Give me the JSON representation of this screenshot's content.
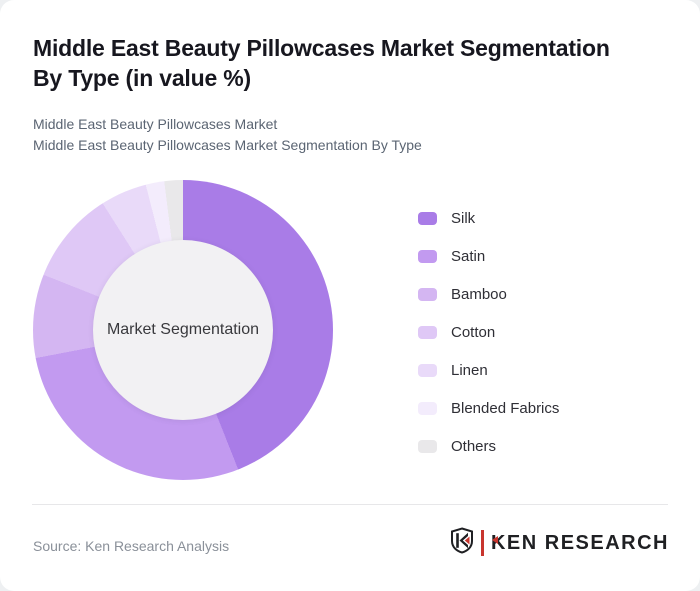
{
  "page": {
    "title_lines": [
      "Middle East Beauty Pillowcases Market Segmentation",
      "By Type (in value %)"
    ],
    "subtitle_lines": [
      "Middle East Beauty Pillowcases Market",
      "Middle East Beauty Pillowcases Market Segmentation By Type"
    ],
    "source_text": "Source: Ken Research Analysis",
    "brand": {
      "wordmark": "KEN RESEARCH",
      "accent_color": "#c8352e",
      "text_color": "#1f2023"
    }
  },
  "chart_data": {
    "type": "pie",
    "donut": true,
    "title": "Middle East Beauty Pillowcases Market Segmentation By Type (in value %)",
    "center_label": "Market Segmentation",
    "categories": [
      "Silk",
      "Satin",
      "Bamboo",
      "Cotton",
      "Linen",
      "Blended Fabrics",
      "Others"
    ],
    "values": [
      44,
      28,
      9,
      10,
      5,
      2,
      2
    ],
    "unit": "%",
    "colors": [
      "#a97ce7",
      "#c29af0",
      "#d4b6f2",
      "#dfc8f6",
      "#e9daf9",
      "#f3ecfc",
      "#e9e8ea"
    ],
    "start_angle_deg": 0,
    "direction": "clockwise",
    "inner_radius_ratio": 0.6,
    "legend_position": "right",
    "hole_color": "#f2f1f3"
  }
}
